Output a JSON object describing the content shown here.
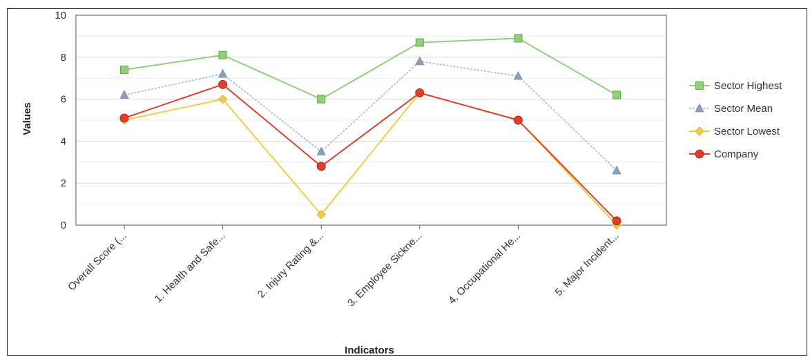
{
  "chart_data": {
    "type": "line",
    "title": "",
    "xlabel": "Indicators",
    "ylabel": "Values",
    "ylim": [
      0,
      10
    ],
    "yticks": [
      "0",
      "2",
      "4",
      "6",
      "8",
      "10"
    ],
    "categories": [
      "Overall Score (...",
      "1. Health and Safe...",
      "2. Injury Rating &...",
      "3. Employee Sickne...",
      "4. Occupational He...",
      "5. Major Incident..."
    ],
    "grid": true,
    "legend_position": "right",
    "series": [
      {
        "name": "Sector Highest",
        "color": "#8fd07a",
        "marker": "square",
        "dash": false,
        "values": [
          7.4,
          8.1,
          6.0,
          8.7,
          8.9,
          6.2
        ]
      },
      {
        "name": "Sector Mean",
        "color": "#9fb3c8",
        "marker": "triangle",
        "dash": true,
        "values": [
          6.2,
          7.2,
          3.5,
          7.8,
          7.1,
          2.6
        ]
      },
      {
        "name": "Sector Lowest",
        "color": "#f2cc45",
        "marker": "diamond",
        "dash": false,
        "values": [
          5.0,
          6.0,
          0.5,
          6.3,
          5.0,
          0.0
        ]
      },
      {
        "name": "Company",
        "color": "#e03e2c",
        "marker": "circle",
        "dash": false,
        "values": [
          5.1,
          6.7,
          2.8,
          6.3,
          5.0,
          0.2
        ]
      }
    ]
  }
}
